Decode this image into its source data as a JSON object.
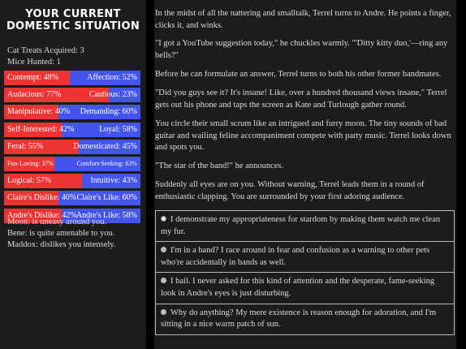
{
  "sidebar": {
    "title": "Your Current Domestic Situation",
    "cat_treats": "Cat Treats Acquired: 3",
    "mice_hunted": "Mice Hunted: 1",
    "stats": [
      {
        "left": "Contempt: 48%",
        "right": "Affection: 52%",
        "red_fraction": 0.48,
        "small": false
      },
      {
        "left": "Audacious: 77%",
        "right": "Cautious: 23%",
        "red_fraction": 0.77,
        "small": false
      },
      {
        "left": "Manipulative: 40%",
        "right": "Demanding: 60%",
        "red_fraction": 0.4,
        "small": false
      },
      {
        "left": "Self-Interested: 42%",
        "right": "Loyal: 58%",
        "red_fraction": 0.42,
        "small": false
      },
      {
        "left": "Feral: 55%",
        "right": "Domesticated: 45%",
        "red_fraction": 0.55,
        "small": false
      },
      {
        "left": "Fun-Loving: 37%",
        "right": "Comfort-Seeking: 63%",
        "red_fraction": 0.37,
        "small": true
      },
      {
        "left": "Logical: 57%",
        "right": "Intuitive: 43%",
        "red_fraction": 0.57,
        "small": false
      },
      {
        "left": "Claire's Dislike: 40%",
        "right": "Claire's Like: 60%",
        "red_fraction": 0.4,
        "small": false
      },
      {
        "left": "Andre's Dislike: 42%",
        "right": "Andre's Like: 58%",
        "red_fraction": 0.42,
        "small": false
      }
    ],
    "relations": [
      "Moon: is uneasy around you.",
      "Bene: is quite amenable to you.",
      "Maddox: dislikes you intensely."
    ]
  },
  "story": {
    "paragraphs": [
      "In the midst of all the nattering and smalltalk, Terrel turns to Andre. He points a finger, clicks it, and winks.",
      "\"I got a YouTube suggestion today,\" he chuckles warmly. \"'Ditty kitty duo,'—ring any bells?\"",
      "Before he can formulate an answer, Terrel turns to both his other former bandmates.",
      "\"Did you guys see it? It's insane! Like, over a hundred thousand views insane,\" Terrel gets out his phone and taps the screen as Kate and Turlough gather round.",
      "You circle their small scrum like an intrigued and furry moon. The tiny sounds of bad guitar and wailing feline accompaniment compete with party music. Terrel looks down and spots you.",
      "\"The star of the band!\" he announces.",
      "Suddenly all eyes are on you. Without warning, Terrel leads them in a round of enthusiastic clapping. You are surrounded by your first adoring audience."
    ],
    "choices": [
      {
        "text": "I demonstrate my appropriateness for stardom by making them watch me clean my fur.",
        "selected": true
      },
      {
        "text": "I'm in a band? I race around in fear and confusion as a warning to other pets who're accidentally in bands as well.",
        "selected": false
      },
      {
        "text": "I bail. I never asked for this kind of attention and the desperate, fame-seeking look in Andre's eyes is just disturbing.",
        "selected": false
      },
      {
        "text": "Why do anything? My mere existence is reason enough for adoration, and I'm sitting in a nice warm patch of sun.",
        "selected": false
      }
    ]
  },
  "colors": {
    "left_bar": "#ee3333",
    "right_bar": "#4455ee",
    "panel": "#1c1c1c",
    "background": "#000000"
  }
}
